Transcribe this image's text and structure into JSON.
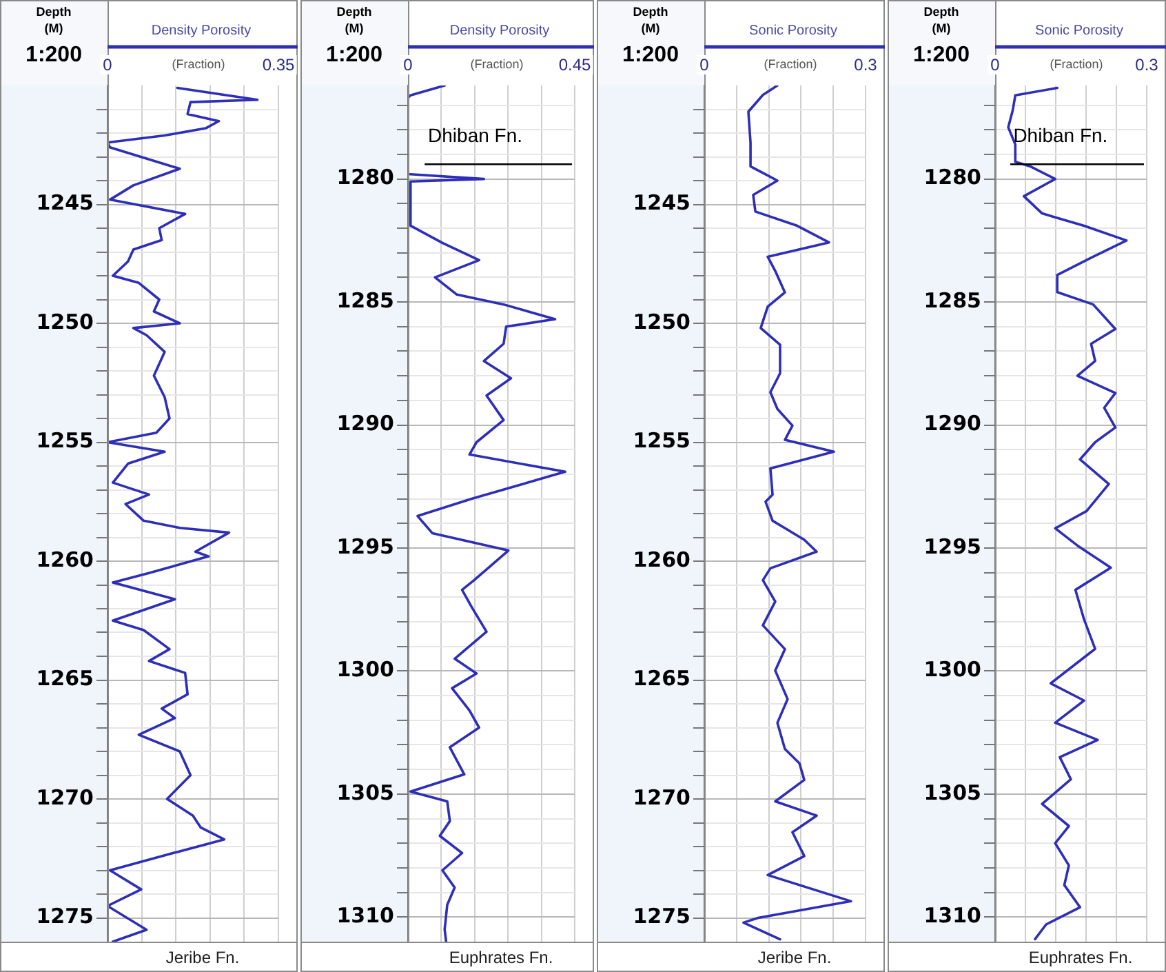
{
  "chart_data": [
    {
      "type": "line",
      "title": "Density Porosity",
      "subtitle": "1:200",
      "xlabel": "(Fraction)",
      "ylabel": "Depth (M)",
      "annotations": [
        "Jeribe Fn."
      ],
      "grid": true,
      "legend": false,
      "marker": "none",
      "line_style": "solid",
      "xlim": [
        0,
        0.35
      ],
      "xticks": [
        0,
        {
          "value": 0.07,
          "label": null
        },
        {
          "value": 0.14,
          "label": null
        },
        {
          "value": 0.21,
          "label": null
        },
        {
          "value": 0.28,
          "label": null
        },
        0.35
      ],
      "ylim": [
        1276,
        1240
      ],
      "yticks": [
        {
          "value": 1241,
          "label": null
        },
        {
          "value": 1242,
          "label": null
        },
        {
          "value": 1243,
          "label": null
        },
        {
          "value": 1244,
          "label": null
        },
        1245,
        {
          "value": 1246,
          "label": null
        },
        {
          "value": 1247,
          "label": null
        },
        {
          "value": 1248,
          "label": null
        },
        {
          "value": 1249,
          "label": null
        },
        1250,
        {
          "value": 1251,
          "label": null
        },
        {
          "value": 1252,
          "label": null
        },
        {
          "value": 1253,
          "label": null
        },
        {
          "value": 1254,
          "label": null
        },
        1255,
        {
          "value": 1256,
          "label": null
        },
        {
          "value": 1257,
          "label": null
        },
        {
          "value": 1258,
          "label": null
        },
        {
          "value": 1259,
          "label": null
        },
        1260,
        {
          "value": 1261,
          "label": null
        },
        {
          "value": 1262,
          "label": null
        },
        {
          "value": 1263,
          "label": null
        },
        {
          "value": 1264,
          "label": null
        },
        1265,
        {
          "value": 1266,
          "label": null
        },
        {
          "value": 1267,
          "label": null
        },
        {
          "value": 1268,
          "label": null
        },
        {
          "value": 1269,
          "label": null
        },
        1270,
        {
          "value": 1271,
          "label": null
        },
        {
          "value": 1272,
          "label": null
        },
        {
          "value": 1273,
          "label": null
        },
        {
          "value": 1274,
          "label": null
        },
        1275
      ],
      "series": [
        {
          "color": "#2e2eb8",
          "x": [
            0.143,
            0.307,
            0.17,
            0.164,
            0.228,
            0.201,
            0.117,
            0.0,
            0.005,
            0.148,
            0.053,
            0.005,
            0.159,
            0.106,
            0.111,
            0.053,
            0.042,
            0.011,
            0.064,
            0.106,
            0.095,
            0.148,
            0.053,
            0.08,
            0.117,
            0.095,
            0.117,
            0.127,
            0.1,
            0.0,
            0.117,
            0.042,
            0.011,
            0.085,
            0.037,
            0.074,
            0.148,
            0.249,
            0.18,
            0.207,
            0.085,
            0.011,
            0.138,
            0.011,
            0.074,
            0.127,
            0.085,
            0.159,
            0.164,
            0.111,
            0.138,
            0.064,
            0.148,
            0.17,
            0.122,
            0.175,
            0.191,
            0.239,
            0.148,
            0.005,
            0.069,
            0.0,
            0.08,
            0.011
          ],
          "values": [
            1240.1,
            1240.6,
            1240.7,
            1241.2,
            1241.5,
            1241.8,
            1242.1,
            1242.4,
            1242.6,
            1243.5,
            1244.2,
            1244.8,
            1245.4,
            1246.0,
            1246.5,
            1246.9,
            1247.4,
            1248.0,
            1248.3,
            1249.0,
            1249.5,
            1250.0,
            1250.2,
            1250.5,
            1251.2,
            1252.2,
            1253.1,
            1254.0,
            1254.6,
            1255.0,
            1255.4,
            1255.9,
            1256.7,
            1257.2,
            1257.6,
            1258.3,
            1258.6,
            1258.8,
            1259.6,
            1259.8,
            1260.5,
            1260.9,
            1261.6,
            1262.5,
            1262.9,
            1263.7,
            1264.2,
            1264.7,
            1265.6,
            1266.2,
            1266.6,
            1267.3,
            1268.0,
            1269.0,
            1270.0,
            1270.7,
            1271.2,
            1271.7,
            1272.2,
            1273.0,
            1273.8,
            1274.5,
            1275.5,
            1276.0
          ]
        }
      ]
    },
    {
      "type": "line",
      "title": "Density Porosity",
      "subtitle": "1:200",
      "xlabel": "(Fraction)",
      "ylabel": "Depth (M)",
      "annotations": [
        "Euphrates Fn."
      ],
      "grid": true,
      "legend": false,
      "marker": "none",
      "line_style": "solid",
      "ref_lines": [
        {
          "axis": "y",
          "value": 1279.4,
          "label": "Dhiban Fn.",
          "color": "#000000"
        }
      ],
      "xlim": [
        0,
        0.45
      ],
      "xticks": [
        0,
        {
          "value": 0.09,
          "label": null
        },
        {
          "value": 0.18,
          "label": null
        },
        {
          "value": 0.27,
          "label": null
        },
        {
          "value": 0.36,
          "label": null
        },
        0.45
      ],
      "ylim": [
        1311,
        1276.2
      ],
      "yticks": [
        {
          "value": 1277,
          "label": null
        },
        {
          "value": 1278,
          "label": null
        },
        {
          "value": 1279,
          "label": null
        },
        1280,
        {
          "value": 1281,
          "label": null
        },
        {
          "value": 1282,
          "label": null
        },
        {
          "value": 1283,
          "label": null
        },
        {
          "value": 1284,
          "label": null
        },
        1285,
        {
          "value": 1286,
          "label": null
        },
        {
          "value": 1287,
          "label": null
        },
        {
          "value": 1288,
          "label": null
        },
        {
          "value": 1289,
          "label": null
        },
        1290,
        {
          "value": 1291,
          "label": null
        },
        {
          "value": 1292,
          "label": null
        },
        {
          "value": 1293,
          "label": null
        },
        {
          "value": 1294,
          "label": null
        },
        1295,
        {
          "value": 1296,
          "label": null
        },
        {
          "value": 1297,
          "label": null
        },
        {
          "value": 1298,
          "label": null
        },
        {
          "value": 1299,
          "label": null
        },
        1300,
        {
          "value": 1301,
          "label": null
        },
        {
          "value": 1302,
          "label": null
        },
        {
          "value": 1303,
          "label": null
        },
        {
          "value": 1304,
          "label": null
        },
        1305,
        {
          "value": 1306,
          "label": null
        },
        {
          "value": 1307,
          "label": null
        },
        {
          "value": 1308,
          "label": null
        },
        {
          "value": 1309,
          "label": null
        },
        1310
      ],
      "series": [
        {
          "color": "#2e2eb8",
          "x": [
            0.099,
            0.007,
            0.0,
            0.0,
            0.205,
            0.007,
            0.007,
            0.093,
            0.192,
            0.073,
            0.132,
            0.258,
            0.397,
            0.265,
            0.258,
            0.205,
            0.278,
            0.212,
            0.258,
            0.185,
            0.166,
            0.424,
            0.172,
            0.026,
            0.066,
            0.271,
            0.179,
            0.146,
            0.172,
            0.212,
            0.126,
            0.185,
            0.119,
            0.166,
            0.192,
            0.113,
            0.152,
            0.007,
            0.106,
            0.113,
            0.086,
            0.146,
            0.093,
            0.126,
            0.106,
            0.099,
            0.103
          ],
          "values": [
            1276.2,
            1276.6,
            1276.7,
            1279.8,
            1280.0,
            1280.1,
            1281.9,
            1282.6,
            1283.3,
            1284.0,
            1284.7,
            1285.1,
            1285.7,
            1286.0,
            1286.7,
            1287.4,
            1288.1,
            1288.8,
            1289.8,
            1290.7,
            1291.2,
            1291.9,
            1293.0,
            1293.7,
            1294.4,
            1295.1,
            1296.3,
            1296.7,
            1297.4,
            1298.4,
            1299.5,
            1300.1,
            1300.7,
            1301.6,
            1302.3,
            1303.1,
            1304.2,
            1304.9,
            1305.3,
            1306.1,
            1306.7,
            1307.4,
            1308.1,
            1308.8,
            1309.5,
            1310.5,
            1311.0
          ]
        }
      ]
    },
    {
      "type": "line",
      "title": "Sonic Porosity",
      "subtitle": "1:200",
      "xlabel": "(Fraction)",
      "ylabel": "Depth (M)",
      "annotations": [
        "Jeribe Fn."
      ],
      "grid": true,
      "legend": false,
      "marker": "none",
      "line_style": "solid",
      "xlim": [
        0,
        0.3
      ],
      "xticks": [
        0,
        {
          "value": 0.06,
          "label": null
        },
        {
          "value": 0.12,
          "label": null
        },
        {
          "value": 0.18,
          "label": null
        },
        {
          "value": 0.24,
          "label": null
        },
        0.3
      ],
      "ylim": [
        1276,
        1240
      ],
      "yticks": [
        {
          "value": 1241,
          "label": null
        },
        {
          "value": 1242,
          "label": null
        },
        {
          "value": 1243,
          "label": null
        },
        {
          "value": 1244,
          "label": null
        },
        1245,
        {
          "value": 1246,
          "label": null
        },
        {
          "value": 1247,
          "label": null
        },
        {
          "value": 1248,
          "label": null
        },
        {
          "value": 1249,
          "label": null
        },
        1250,
        {
          "value": 1251,
          "label": null
        },
        {
          "value": 1252,
          "label": null
        },
        {
          "value": 1253,
          "label": null
        },
        {
          "value": 1254,
          "label": null
        },
        1255,
        {
          "value": 1256,
          "label": null
        },
        {
          "value": 1257,
          "label": null
        },
        {
          "value": 1258,
          "label": null
        },
        {
          "value": 1259,
          "label": null
        },
        1260,
        {
          "value": 1261,
          "label": null
        },
        {
          "value": 1262,
          "label": null
        },
        {
          "value": 1263,
          "label": null
        },
        {
          "value": 1264,
          "label": null
        },
        1265,
        {
          "value": 1266,
          "label": null
        },
        {
          "value": 1267,
          "label": null
        },
        {
          "value": 1268,
          "label": null
        },
        {
          "value": 1269,
          "label": null
        },
        1270,
        {
          "value": 1271,
          "label": null
        },
        {
          "value": 1272,
          "label": null
        },
        {
          "value": 1273,
          "label": null
        },
        {
          "value": 1274,
          "label": null
        },
        1275
      ],
      "series": [
        {
          "color": "#2e2eb8",
          "x": [
            0.136,
            0.109,
            0.082,
            0.086,
            0.086,
            0.136,
            0.091,
            0.095,
            0.173,
            0.232,
            0.118,
            0.132,
            0.15,
            0.118,
            0.105,
            0.141,
            0.141,
            0.123,
            0.136,
            0.164,
            0.15,
            0.241,
            0.123,
            0.127,
            0.114,
            0.127,
            0.186,
            0.209,
            0.123,
            0.109,
            0.132,
            0.109,
            0.15,
            0.132,
            0.155,
            0.136,
            0.15,
            0.177,
            0.186,
            0.132,
            0.209,
            0.164,
            0.186,
            0.118,
            0.273,
            0.1,
            0.073,
            0.141
          ],
          "values": [
            1240.0,
            1240.4,
            1241.1,
            1242.4,
            1243.4,
            1244.0,
            1244.6,
            1245.3,
            1245.9,
            1246.6,
            1247.2,
            1247.8,
            1248.7,
            1249.3,
            1250.2,
            1250.9,
            1252.1,
            1252.9,
            1253.6,
            1254.3,
            1254.9,
            1255.4,
            1256.1,
            1257.2,
            1257.5,
            1258.3,
            1259.1,
            1259.6,
            1260.3,
            1260.8,
            1261.7,
            1262.7,
            1263.7,
            1264.6,
            1265.8,
            1266.8,
            1267.9,
            1268.5,
            1269.2,
            1270.1,
            1270.7,
            1271.4,
            1272.4,
            1273.2,
            1274.3,
            1275.0,
            1275.2,
            1275.9
          ]
        }
      ]
    },
    {
      "type": "line",
      "title": "Sonic Porosity",
      "subtitle": "1:200",
      "xlabel": "(Fraction)",
      "ylabel": "Depth (M)",
      "annotations": [
        "Euphrates Fn."
      ],
      "grid": true,
      "legend": false,
      "marker": "none",
      "line_style": "solid",
      "ref_lines": [
        {
          "axis": "y",
          "value": 1279.4,
          "label": "Dhiban Fn.",
          "color": "#000000"
        }
      ],
      "xlim": [
        0,
        0.3
      ],
      "xticks": [
        0,
        {
          "value": 0.06,
          "label": null
        },
        {
          "value": 0.12,
          "label": null
        },
        {
          "value": 0.18,
          "label": null
        },
        {
          "value": 0.24,
          "label": null
        },
        0.3
      ],
      "ylim": [
        1311,
        1276.2
      ],
      "yticks": [
        {
          "value": 1277,
          "label": null
        },
        {
          "value": 1278,
          "label": null
        },
        {
          "value": 1279,
          "label": null
        },
        1280,
        {
          "value": 1281,
          "label": null
        },
        {
          "value": 1282,
          "label": null
        },
        {
          "value": 1283,
          "label": null
        },
        {
          "value": 1284,
          "label": null
        },
        1285,
        {
          "value": 1286,
          "label": null
        },
        {
          "value": 1287,
          "label": null
        },
        {
          "value": 1288,
          "label": null
        },
        {
          "value": 1289,
          "label": null
        },
        1290,
        {
          "value": 1291,
          "label": null
        },
        {
          "value": 1292,
          "label": null
        },
        {
          "value": 1293,
          "label": null
        },
        {
          "value": 1294,
          "label": null
        },
        1295,
        {
          "value": 1296,
          "label": null
        },
        {
          "value": 1297,
          "label": null
        },
        {
          "value": 1298,
          "label": null
        },
        {
          "value": 1299,
          "label": null
        },
        1300,
        {
          "value": 1301,
          "label": null
        },
        {
          "value": 1302,
          "label": null
        },
        {
          "value": 1303,
          "label": null
        },
        {
          "value": 1304,
          "label": null
        },
        1305,
        {
          "value": 1306,
          "label": null
        },
        {
          "value": 1307,
          "label": null
        },
        {
          "value": 1308,
          "label": null
        },
        {
          "value": 1309,
          "label": null
        },
        1310
      ],
      "series": [
        {
          "color": "#2e2eb8",
          "x": [
            0.123,
            0.04,
            0.035,
            0.026,
            0.04,
            0.04,
            0.071,
            0.119,
            0.057,
            0.093,
            0.176,
            0.26,
            0.19,
            0.123,
            0.123,
            0.194,
            0.238,
            0.19,
            0.198,
            0.163,
            0.238,
            0.216,
            0.238,
            0.198,
            0.168,
            0.225,
            0.181,
            0.119,
            0.163,
            0.229,
            0.159,
            0.176,
            0.198,
            0.154,
            0.11,
            0.176,
            0.119,
            0.203,
            0.128,
            0.15,
            0.093,
            0.146,
            0.119,
            0.146,
            0.137,
            0.168,
            0.101,
            0.079
          ],
          "values": [
            1276.3,
            1276.6,
            1277.2,
            1277.9,
            1278.6,
            1279.3,
            1279.5,
            1280.0,
            1280.7,
            1281.4,
            1281.9,
            1282.5,
            1283.2,
            1283.9,
            1284.6,
            1285.1,
            1286.1,
            1286.7,
            1287.4,
            1288.0,
            1288.7,
            1289.3,
            1290.1,
            1290.7,
            1291.4,
            1292.4,
            1293.5,
            1294.2,
            1294.9,
            1295.8,
            1296.7,
            1297.9,
            1299.1,
            1299.8,
            1300.5,
            1301.2,
            1302.1,
            1302.8,
            1303.5,
            1304.4,
            1305.4,
            1306.3,
            1307.0,
            1307.9,
            1308.7,
            1309.6,
            1310.3,
            1310.9
          ]
        }
      ]
    }
  ]
}
